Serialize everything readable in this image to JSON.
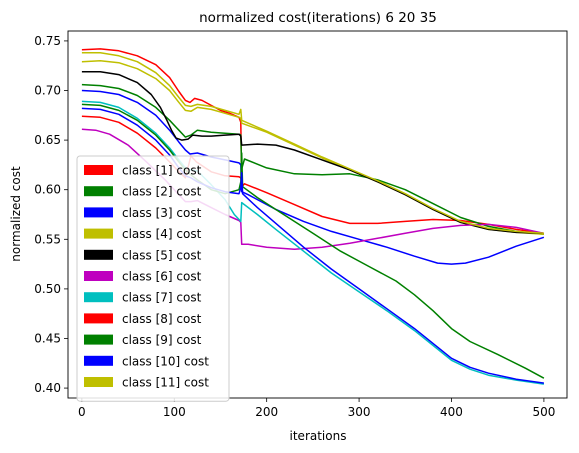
{
  "chart_data": {
    "type": "line",
    "title": "normalized cost(iterations) 6 20 35",
    "xlabel": "iterations",
    "ylabel": "normalized cost",
    "xlim": [
      -15,
      525
    ],
    "ylim": [
      0.39,
      0.76
    ],
    "xticks": [
      0,
      100,
      200,
      300,
      400,
      500
    ],
    "yticks": [
      0.4,
      0.45,
      0.5,
      0.55,
      0.6,
      0.65,
      0.7,
      0.75
    ],
    "ytick_labels": [
      "0.40",
      "0.45",
      "0.50",
      "0.55",
      "0.60",
      "0.65",
      "0.70",
      "0.75"
    ],
    "grid": false,
    "legend_position": "lower-left",
    "series": [
      {
        "name": "class [1] cost",
        "color": "#ff0000",
        "points": [
          [
            0,
            0.741
          ],
          [
            20,
            0.742
          ],
          [
            40,
            0.74
          ],
          [
            60,
            0.735
          ],
          [
            80,
            0.726
          ],
          [
            95,
            0.713
          ],
          [
            105,
            0.699
          ],
          [
            112,
            0.69
          ],
          [
            117,
            0.688
          ],
          [
            122,
            0.692
          ],
          [
            130,
            0.69
          ],
          [
            140,
            0.685
          ],
          [
            150,
            0.68
          ],
          [
            160,
            0.677
          ],
          [
            170,
            0.673
          ],
          [
            172,
            0.668
          ],
          [
            173,
            0.603
          ],
          [
            176,
            0.606
          ],
          [
            200,
            0.597
          ],
          [
            230,
            0.585
          ],
          [
            260,
            0.573
          ],
          [
            290,
            0.566
          ],
          [
            320,
            0.566
          ],
          [
            350,
            0.568
          ],
          [
            380,
            0.57
          ],
          [
            410,
            0.569
          ],
          [
            440,
            0.565
          ],
          [
            470,
            0.56
          ],
          [
            500,
            0.556
          ]
        ]
      },
      {
        "name": "class [2] cost",
        "color": "#008000",
        "points": [
          [
            0,
            0.706
          ],
          [
            20,
            0.705
          ],
          [
            40,
            0.702
          ],
          [
            60,
            0.695
          ],
          [
            80,
            0.683
          ],
          [
            95,
            0.67
          ],
          [
            105,
            0.66
          ],
          [
            112,
            0.653
          ],
          [
            118,
            0.655
          ],
          [
            125,
            0.66
          ],
          [
            140,
            0.658
          ],
          [
            155,
            0.657
          ],
          [
            170,
            0.656
          ],
          [
            172,
            0.655
          ],
          [
            173,
            0.621
          ],
          [
            176,
            0.631
          ],
          [
            200,
            0.622
          ],
          [
            230,
            0.616
          ],
          [
            260,
            0.615
          ],
          [
            290,
            0.616
          ],
          [
            320,
            0.61
          ],
          [
            350,
            0.6
          ],
          [
            380,
            0.586
          ],
          [
            410,
            0.572
          ],
          [
            440,
            0.563
          ],
          [
            470,
            0.558
          ],
          [
            500,
            0.555
          ]
        ]
      },
      {
        "name": "class [3] cost",
        "color": "#0000ff",
        "points": [
          [
            0,
            0.7
          ],
          [
            20,
            0.699
          ],
          [
            40,
            0.696
          ],
          [
            60,
            0.688
          ],
          [
            80,
            0.675
          ],
          [
            95,
            0.66
          ],
          [
            105,
            0.648
          ],
          [
            112,
            0.64
          ],
          [
            117,
            0.636
          ],
          [
            125,
            0.637
          ],
          [
            140,
            0.633
          ],
          [
            155,
            0.63
          ],
          [
            170,
            0.627
          ],
          [
            172,
            0.625
          ],
          [
            173,
            0.598
          ],
          [
            180,
            0.595
          ],
          [
            210,
            0.58
          ],
          [
            240,
            0.568
          ],
          [
            270,
            0.558
          ],
          [
            300,
            0.55
          ],
          [
            330,
            0.542
          ],
          [
            360,
            0.533
          ],
          [
            385,
            0.526
          ],
          [
            400,
            0.525
          ],
          [
            415,
            0.526
          ],
          [
            440,
            0.532
          ],
          [
            470,
            0.543
          ],
          [
            500,
            0.552
          ]
        ]
      },
      {
        "name": "class [4] cost",
        "color": "#bfbf00",
        "points": [
          [
            0,
            0.729
          ],
          [
            20,
            0.73
          ],
          [
            40,
            0.728
          ],
          [
            60,
            0.722
          ],
          [
            80,
            0.712
          ],
          [
            95,
            0.7
          ],
          [
            105,
            0.688
          ],
          [
            112,
            0.68
          ],
          [
            118,
            0.679
          ],
          [
            125,
            0.683
          ],
          [
            140,
            0.681
          ],
          [
            155,
            0.677
          ],
          [
            170,
            0.673
          ],
          [
            172,
            0.672
          ],
          [
            173,
            0.667
          ],
          [
            200,
            0.658
          ],
          [
            230,
            0.645
          ],
          [
            260,
            0.632
          ],
          [
            290,
            0.62
          ],
          [
            320,
            0.608
          ],
          [
            350,
            0.595
          ],
          [
            380,
            0.58
          ],
          [
            410,
            0.567
          ],
          [
            440,
            0.56
          ],
          [
            470,
            0.557
          ],
          [
            500,
            0.555
          ]
        ]
      },
      {
        "name": "class [5] cost",
        "color": "#000000",
        "points": [
          [
            0,
            0.719
          ],
          [
            20,
            0.719
          ],
          [
            40,
            0.716
          ],
          [
            60,
            0.708
          ],
          [
            75,
            0.696
          ],
          [
            85,
            0.683
          ],
          [
            92,
            0.67
          ],
          [
            97,
            0.66
          ],
          [
            102,
            0.652
          ],
          [
            108,
            0.65
          ],
          [
            115,
            0.651
          ],
          [
            120,
            0.655
          ],
          [
            130,
            0.654
          ],
          [
            140,
            0.654
          ],
          [
            155,
            0.655
          ],
          [
            170,
            0.656
          ],
          [
            172,
            0.654
          ],
          [
            173,
            0.645
          ],
          [
            190,
            0.646
          ],
          [
            210,
            0.645
          ],
          [
            230,
            0.64
          ],
          [
            260,
            0.63
          ],
          [
            290,
            0.62
          ],
          [
            320,
            0.608
          ],
          [
            350,
            0.595
          ],
          [
            380,
            0.58
          ],
          [
            410,
            0.567
          ],
          [
            440,
            0.56
          ],
          [
            470,
            0.557
          ],
          [
            500,
            0.556
          ]
        ]
      },
      {
        "name": "class [6] cost",
        "color": "#bf00bf",
        "points": [
          [
            0,
            0.661
          ],
          [
            15,
            0.66
          ],
          [
            30,
            0.656
          ],
          [
            50,
            0.645
          ],
          [
            70,
            0.628
          ],
          [
            90,
            0.61
          ],
          [
            105,
            0.595
          ],
          [
            112,
            0.588
          ],
          [
            118,
            0.588
          ],
          [
            125,
            0.589
          ],
          [
            140,
            0.582
          ],
          [
            155,
            0.575
          ],
          [
            170,
            0.569
          ],
          [
            172,
            0.567
          ],
          [
            173,
            0.545
          ],
          [
            180,
            0.545
          ],
          [
            200,
            0.542
          ],
          [
            230,
            0.54
          ],
          [
            260,
            0.542
          ],
          [
            290,
            0.546
          ],
          [
            320,
            0.551
          ],
          [
            350,
            0.556
          ],
          [
            380,
            0.561
          ],
          [
            410,
            0.564
          ],
          [
            440,
            0.565
          ],
          [
            470,
            0.562
          ],
          [
            500,
            0.556
          ]
        ]
      },
      {
        "name": "class [7] cost",
        "color": "#00bfbf",
        "points": [
          [
            0,
            0.689
          ],
          [
            20,
            0.688
          ],
          [
            40,
            0.683
          ],
          [
            60,
            0.672
          ],
          [
            80,
            0.657
          ],
          [
            95,
            0.642
          ],
          [
            105,
            0.63
          ],
          [
            112,
            0.622
          ],
          [
            118,
            0.62
          ],
          [
            125,
            0.619
          ],
          [
            140,
            0.605
          ],
          [
            155,
            0.59
          ],
          [
            165,
            0.575
          ],
          [
            172,
            0.568
          ],
          [
            173,
            0.587
          ],
          [
            190,
            0.575
          ],
          [
            210,
            0.56
          ],
          [
            240,
            0.538
          ],
          [
            270,
            0.516
          ],
          [
            300,
            0.497
          ],
          [
            330,
            0.478
          ],
          [
            360,
            0.458
          ],
          [
            380,
            0.443
          ],
          [
            400,
            0.428
          ],
          [
            420,
            0.419
          ],
          [
            440,
            0.413
          ],
          [
            470,
            0.408
          ],
          [
            500,
            0.404
          ]
        ]
      },
      {
        "name": "class [8] cost",
        "color": "#ff0000",
        "points": [
          [
            0,
            0.674
          ],
          [
            20,
            0.673
          ],
          [
            40,
            0.668
          ],
          [
            60,
            0.657
          ],
          [
            80,
            0.642
          ],
          [
            95,
            0.628
          ],
          [
            105,
            0.618
          ],
          [
            112,
            0.612
          ],
          [
            118,
            0.634
          ],
          [
            124,
            0.628
          ],
          [
            140,
            0.618
          ],
          [
            155,
            0.614
          ],
          [
            170,
            0.613
          ],
          [
            172,
            0.612
          ],
          [
            173,
            0.608
          ]
        ]
      },
      {
        "name": "class [9] cost",
        "color": "#008000",
        "points": [
          [
            0,
            0.686
          ],
          [
            20,
            0.685
          ],
          [
            40,
            0.68
          ],
          [
            60,
            0.67
          ],
          [
            80,
            0.655
          ],
          [
            95,
            0.64
          ],
          [
            105,
            0.628
          ],
          [
            112,
            0.62
          ],
          [
            118,
            0.615
          ],
          [
            125,
            0.61
          ],
          [
            140,
            0.6
          ],
          [
            155,
            0.596
          ],
          [
            170,
            0.6
          ],
          [
            172,
            0.608
          ],
          [
            173,
            0.637
          ],
          [
            174,
            0.603
          ],
          [
            190,
            0.592
          ],
          [
            220,
            0.574
          ],
          [
            250,
            0.556
          ],
          [
            280,
            0.538
          ],
          [
            310,
            0.523
          ],
          [
            340,
            0.508
          ],
          [
            360,
            0.494
          ],
          [
            380,
            0.478
          ],
          [
            400,
            0.46
          ],
          [
            420,
            0.447
          ],
          [
            450,
            0.434
          ],
          [
            480,
            0.42
          ],
          [
            500,
            0.41
          ]
        ]
      },
      {
        "name": "class [10] cost",
        "color": "#0000ff",
        "points": [
          [
            0,
            0.682
          ],
          [
            20,
            0.681
          ],
          [
            40,
            0.676
          ],
          [
            60,
            0.665
          ],
          [
            80,
            0.65
          ],
          [
            95,
            0.635
          ],
          [
            105,
            0.622
          ],
          [
            112,
            0.614
          ],
          [
            118,
            0.612
          ],
          [
            125,
            0.608
          ],
          [
            140,
            0.602
          ],
          [
            155,
            0.598
          ],
          [
            170,
            0.596
          ],
          [
            172,
            0.602
          ],
          [
            173,
            0.617
          ],
          [
            174,
            0.596
          ],
          [
            190,
            0.582
          ],
          [
            210,
            0.566
          ],
          [
            240,
            0.542
          ],
          [
            270,
            0.52
          ],
          [
            300,
            0.5
          ],
          [
            330,
            0.48
          ],
          [
            360,
            0.46
          ],
          [
            380,
            0.445
          ],
          [
            400,
            0.43
          ],
          [
            420,
            0.421
          ],
          [
            440,
            0.415
          ],
          [
            470,
            0.409
          ],
          [
            500,
            0.405
          ]
        ]
      },
      {
        "name": "class [11] cost",
        "color": "#bfbf00",
        "points": [
          [
            0,
            0.738
          ],
          [
            20,
            0.738
          ],
          [
            40,
            0.735
          ],
          [
            60,
            0.729
          ],
          [
            80,
            0.718
          ],
          [
            95,
            0.705
          ],
          [
            105,
            0.693
          ],
          [
            112,
            0.685
          ],
          [
            118,
            0.684
          ],
          [
            125,
            0.686
          ],
          [
            140,
            0.684
          ],
          [
            155,
            0.68
          ],
          [
            170,
            0.676
          ],
          [
            172,
            0.681
          ],
          [
            173,
            0.67
          ],
          [
            200,
            0.659
          ],
          [
            230,
            0.646
          ],
          [
            260,
            0.633
          ],
          [
            290,
            0.621
          ],
          [
            320,
            0.609
          ],
          [
            350,
            0.596
          ],
          [
            380,
            0.581
          ],
          [
            410,
            0.568
          ],
          [
            440,
            0.561
          ],
          [
            470,
            0.558
          ],
          [
            500,
            0.556
          ]
        ]
      }
    ]
  }
}
